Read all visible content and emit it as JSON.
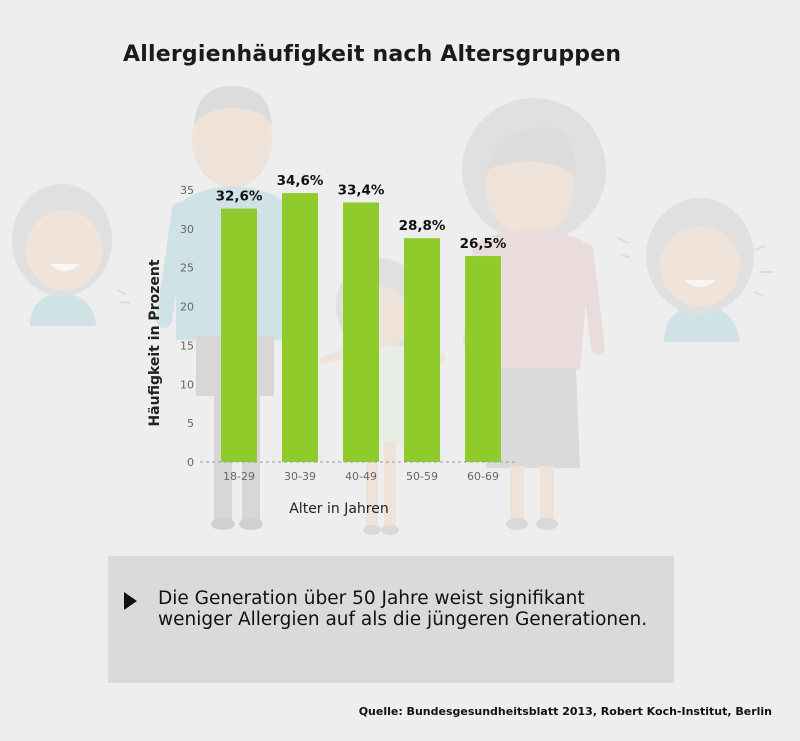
{
  "title": "Allergienhäufigkeit nach Altersgruppen",
  "chart_data": {
    "type": "bar",
    "categories": [
      "18-29",
      "30-39",
      "40-49",
      "50-59",
      "60-69"
    ],
    "values": [
      32.6,
      34.6,
      33.4,
      28.8,
      26.5
    ],
    "data_labels": [
      "32,6%",
      "34,6%",
      "33,4%",
      "28,8%",
      "26,5%"
    ],
    "yticks": [
      "0",
      "5",
      "10",
      "15",
      "20",
      "25",
      "30",
      "35"
    ],
    "xlabel": "Alter in Jahren",
    "ylabel": "Häufigkeit in Prozent",
    "ylim": [
      0,
      35
    ],
    "bar_color": "#8fcb2a",
    "grid": false
  },
  "callout": {
    "text": "Die Generation über 50 Jahre weist signifikant weniger Allergien auf als die jüngeren Generationen."
  },
  "source": "Quelle: Bundesgesundheitsblatt 2013, Robert Koch-Institut, Berlin"
}
